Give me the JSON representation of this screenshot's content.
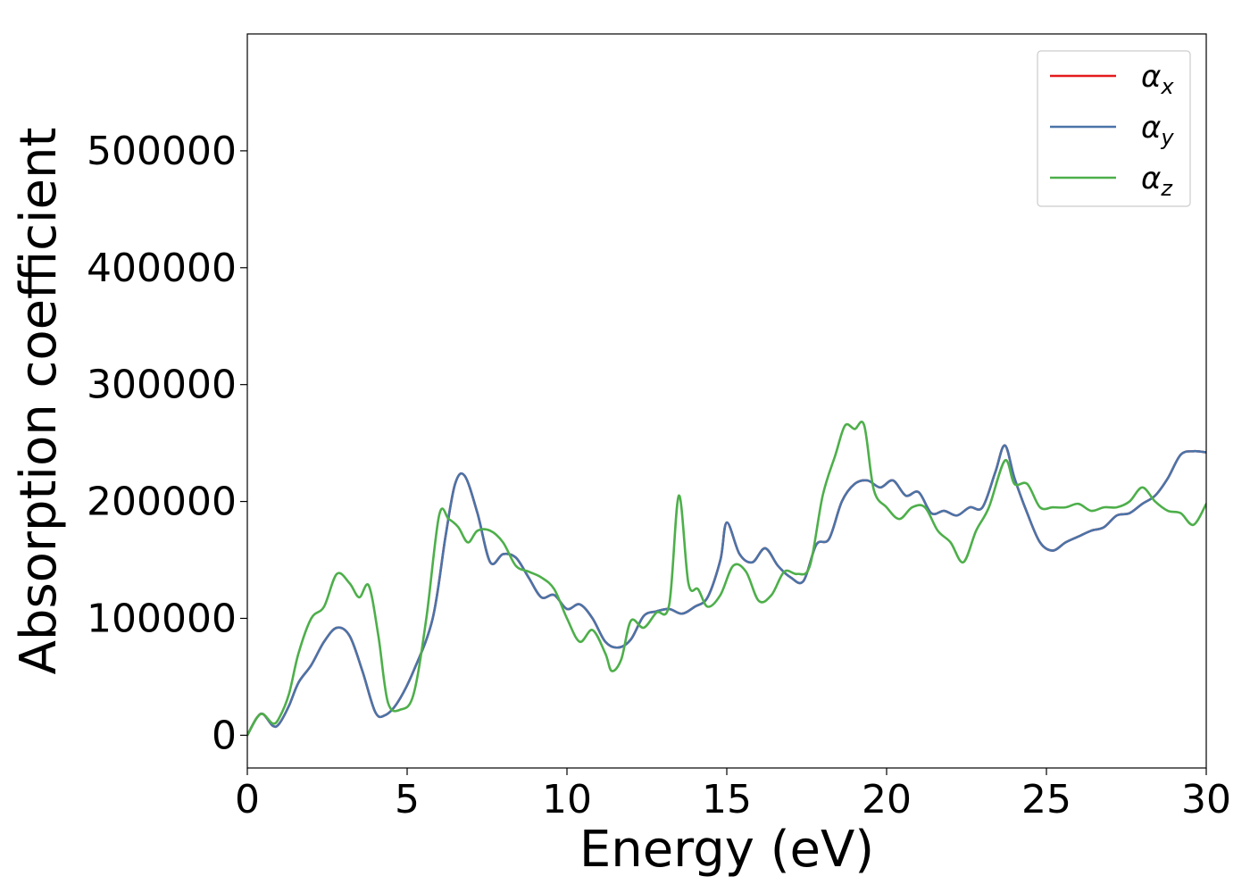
{
  "chart_data": {
    "type": "line",
    "title": "",
    "xlabel": "Energy (eV)",
    "ylabel": "Absorption coefficient",
    "xlim": [
      0,
      30
    ],
    "ylim": [
      -28000,
      600000
    ],
    "xticks": [
      "0",
      "5",
      "10",
      "15",
      "20",
      "25",
      "30"
    ],
    "yticks": [
      "0",
      "100000",
      "200000",
      "300000",
      "400000",
      "500000"
    ],
    "grid": false,
    "legend_position": "top-right",
    "series": [
      {
        "name": "α",
        "sub": "x",
        "color": "#e41a1c",
        "x": [
          0,
          0.3,
          0.5,
          0.8,
          1.0,
          1.3,
          1.6,
          2.0,
          2.4,
          2.8,
          3.2,
          3.6,
          4.0,
          4.3,
          4.7,
          5.2,
          5.8,
          6.2,
          6.5,
          6.8,
          7.2,
          7.6,
          8.0,
          8.4,
          8.8,
          9.2,
          9.6,
          10.0,
          10.4,
          10.8,
          11.2,
          11.6,
          12.0,
          12.4,
          12.8,
          13.2,
          13.6,
          14.0,
          14.4,
          14.8,
          15.0,
          15.4,
          15.8,
          16.2,
          16.6,
          17.0,
          17.4,
          17.8,
          18.2,
          18.6,
          19.0,
          19.4,
          19.8,
          20.2,
          20.6,
          21.0,
          21.4,
          21.8,
          22.2,
          22.6,
          23.0,
          23.4,
          23.7,
          24.0,
          24.4,
          24.8,
          25.2,
          25.6,
          26.0,
          26.4,
          26.8,
          27.2,
          27.6,
          28.0,
          28.4,
          28.8,
          29.2,
          29.6,
          30.0
        ],
        "y": [
          0,
          15000,
          18000,
          8000,
          10000,
          25000,
          45000,
          60000,
          80000,
          92000,
          85000,
          55000,
          20000,
          17000,
          28000,
          55000,
          100000,
          170000,
          215000,
          222000,
          190000,
          148000,
          155000,
          152000,
          135000,
          118000,
          120000,
          108000,
          112000,
          100000,
          80000,
          75000,
          82000,
          102000,
          106000,
          108000,
          104000,
          110000,
          118000,
          150000,
          182000,
          155000,
          148000,
          160000,
          145000,
          135000,
          132000,
          163000,
          168000,
          200000,
          215000,
          218000,
          212000,
          218000,
          205000,
          208000,
          190000,
          192000,
          188000,
          195000,
          195000,
          225000,
          248000,
          220000,
          190000,
          165000,
          158000,
          165000,
          170000,
          175000,
          178000,
          188000,
          190000,
          198000,
          205000,
          220000,
          240000,
          243000,
          242000
        ]
      },
      {
        "name": "α",
        "sub": "y",
        "color": "#4a74a8",
        "x": [
          0,
          0.3,
          0.5,
          0.8,
          1.0,
          1.3,
          1.6,
          2.0,
          2.4,
          2.8,
          3.2,
          3.6,
          4.0,
          4.3,
          4.7,
          5.2,
          5.8,
          6.2,
          6.5,
          6.8,
          7.2,
          7.6,
          8.0,
          8.4,
          8.8,
          9.2,
          9.6,
          10.0,
          10.4,
          10.8,
          11.2,
          11.6,
          12.0,
          12.4,
          12.8,
          13.2,
          13.6,
          14.0,
          14.4,
          14.8,
          15.0,
          15.4,
          15.8,
          16.2,
          16.6,
          17.0,
          17.4,
          17.8,
          18.2,
          18.6,
          19.0,
          19.4,
          19.8,
          20.2,
          20.6,
          21.0,
          21.4,
          21.8,
          22.2,
          22.6,
          23.0,
          23.4,
          23.7,
          24.0,
          24.4,
          24.8,
          25.2,
          25.6,
          26.0,
          26.4,
          26.8,
          27.2,
          27.6,
          28.0,
          28.4,
          28.8,
          29.2,
          29.6,
          30.0
        ],
        "y": [
          0,
          15000,
          18000,
          8000,
          10000,
          25000,
          45000,
          60000,
          80000,
          92000,
          85000,
          55000,
          20000,
          17000,
          28000,
          55000,
          100000,
          170000,
          215000,
          222000,
          190000,
          148000,
          155000,
          152000,
          135000,
          118000,
          120000,
          108000,
          112000,
          100000,
          80000,
          75000,
          82000,
          102000,
          106000,
          108000,
          104000,
          110000,
          118000,
          150000,
          182000,
          155000,
          148000,
          160000,
          145000,
          135000,
          132000,
          163000,
          168000,
          200000,
          215000,
          218000,
          212000,
          218000,
          205000,
          208000,
          190000,
          192000,
          188000,
          195000,
          195000,
          225000,
          248000,
          220000,
          190000,
          165000,
          158000,
          165000,
          170000,
          175000,
          178000,
          188000,
          190000,
          198000,
          205000,
          220000,
          240000,
          243000,
          242000
        ]
      },
      {
        "name": "α",
        "sub": "z",
        "color": "#4daf4a",
        "x": [
          0,
          0.3,
          0.5,
          0.8,
          1.0,
          1.3,
          1.6,
          2.0,
          2.4,
          2.8,
          3.2,
          3.5,
          3.8,
          4.1,
          4.4,
          4.8,
          5.2,
          5.6,
          6.0,
          6.3,
          6.6,
          6.9,
          7.2,
          7.6,
          8.0,
          8.4,
          8.8,
          9.2,
          9.6,
          10.0,
          10.4,
          10.8,
          11.2,
          11.4,
          11.7,
          12.0,
          12.4,
          12.8,
          13.2,
          13.5,
          13.8,
          14.1,
          14.4,
          14.8,
          15.2,
          15.6,
          16.0,
          16.4,
          16.8,
          17.2,
          17.6,
          18.0,
          18.4,
          18.7,
          19.0,
          19.3,
          19.6,
          20.0,
          20.4,
          20.8,
          21.2,
          21.6,
          22.0,
          22.4,
          22.8,
          23.2,
          23.7,
          24.0,
          24.4,
          24.8,
          25.2,
          25.6,
          26.0,
          26.4,
          26.8,
          27.2,
          27.6,
          28.0,
          28.4,
          28.8,
          29.2,
          29.6,
          30.0
        ],
        "y": [
          0,
          15000,
          18000,
          10000,
          15000,
          35000,
          70000,
          100000,
          110000,
          138000,
          130000,
          118000,
          128000,
          85000,
          28000,
          22000,
          35000,
          100000,
          188000,
          185000,
          178000,
          165000,
          175000,
          175000,
          165000,
          145000,
          140000,
          135000,
          125000,
          100000,
          80000,
          90000,
          70000,
          55000,
          65000,
          98000,
          92000,
          105000,
          112000,
          205000,
          130000,
          125000,
          110000,
          120000,
          145000,
          140000,
          115000,
          120000,
          140000,
          138000,
          145000,
          205000,
          240000,
          265000,
          262000,
          265000,
          210000,
          195000,
          185000,
          195000,
          195000,
          175000,
          165000,
          148000,
          175000,
          195000,
          235000,
          215000,
          215000,
          195000,
          195000,
          195000,
          198000,
          192000,
          195000,
          195000,
          200000,
          212000,
          200000,
          192000,
          190000,
          180000,
          198000
        ]
      }
    ]
  }
}
